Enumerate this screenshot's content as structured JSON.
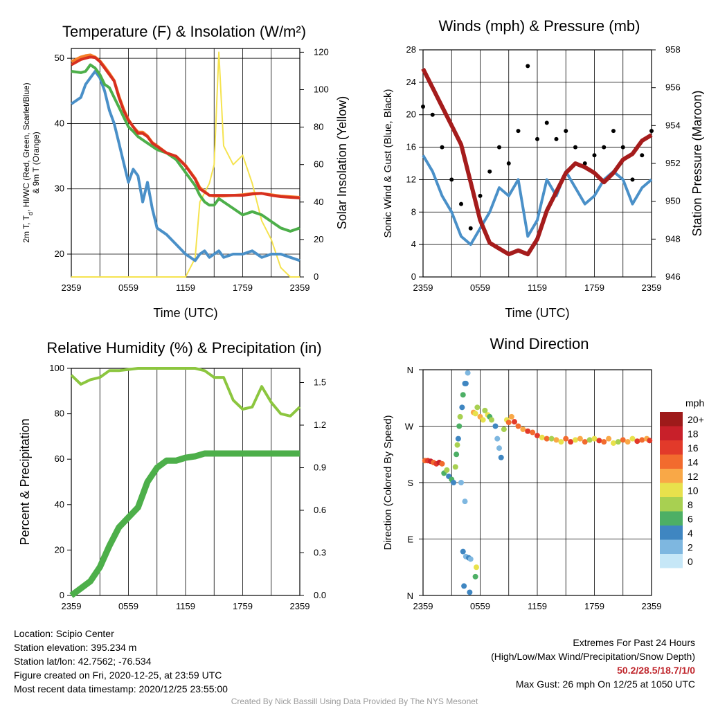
{
  "colors": {
    "red": "#d7301f",
    "green": "#4daf4a",
    "blue": "#4a90c8",
    "orange": "#f57f29",
    "yellow": "#f5e34f",
    "maroon": "#a51c1c",
    "lightgreen": "#8cc63f",
    "precip": "#4daf4a"
  },
  "panels": {
    "temp": {
      "title": "Temperature (F) & Insolation (W/m²)",
      "ylabel_left": [
        "2m T, T",
        "d",
        ", HI/WC (Red, Green, Scarlet/Blue)",
        "& 9m T (Orange)"
      ],
      "ylabel_right": "Solar Insolation (Yellow)",
      "xlabel": "Time (UTC)"
    },
    "wind": {
      "title": "Winds (mph) & Pressure (mb)",
      "ylabel_left": "Sonic Wind & Gust (Blue, Black)",
      "ylabel_right": "Station Pressure (Maroon)",
      "xlabel": "Time (UTC)"
    },
    "rh": {
      "title": "Relative Humidity (%) & Precipitation (in)",
      "ylabel_left": "Percent & Precipitation"
    },
    "dir": {
      "title": "Wind Direction",
      "ylabel_left": "Direction (Colored By Speed)",
      "legend_title": "mph",
      "legend_labels": [
        "20+",
        "18",
        "16",
        "14",
        "12",
        "10",
        "8",
        "6",
        "4",
        "2",
        "0"
      ],
      "legend_colors": [
        "#9e1a1a",
        "#c8202a",
        "#e23a2a",
        "#f26b2e",
        "#f9a847",
        "#e8e14c",
        "#a8d051",
        "#4daf65",
        "#3f86c1",
        "#7eb7e0",
        "#c6e7f7"
      ]
    }
  },
  "info": {
    "location": "Location: Scipio Center",
    "elevation": "Station elevation: 395.234 m",
    "latlon": "Station lat/lon: 42.7562; -76.534",
    "created": "Figure created on Fri, 2020-12-25, at 23:59 UTC",
    "recent": "Most recent data timestamp: 2020/12/25 23:55:00",
    "extremes_title": "Extremes For Past 24 Hours",
    "extremes_sub": "(High/Low/Max Wind/Precipitation/Snow Depth)",
    "extremes_values": "50.2/28.5/18.7/1/0",
    "max_gust": "Max Gust: 26 mph On 12/25 at 1050 UTC",
    "credit": "Created By Nick Bassill Using Data Provided By The NYS Mesonet"
  },
  "chart_data": [
    {
      "type": "line",
      "title": "Temperature (F) & Insolation (W/m²)",
      "xlabel": "Time (UTC)",
      "x_ticks": [
        "2359",
        "0559",
        "1159",
        "1759",
        "2359"
      ],
      "y_left_ticks": [
        20,
        30,
        40,
        50
      ],
      "ylim_left": [
        16.5,
        51.5
      ],
      "y_right_ticks": [
        0,
        20,
        40,
        60,
        80,
        100,
        120
      ],
      "ylim_right": [
        0,
        122
      ],
      "x": [
        0,
        1,
        1.5,
        2,
        2.5,
        3,
        3.5,
        4,
        4.5,
        5,
        5.5,
        6,
        6.5,
        7,
        7.5,
        8,
        8.5,
        9,
        10,
        11,
        12,
        13,
        13.5,
        14,
        14.5,
        15,
        15.5,
        16,
        17,
        18,
        19,
        20,
        21,
        22,
        23,
        24
      ],
      "series": [
        {
          "name": "2m T",
          "color": "red",
          "axis": "left",
          "values": [
            49,
            49.8,
            50,
            50.2,
            50.1,
            49.5,
            48.5,
            47.5,
            46.5,
            44,
            42,
            40.5,
            39.5,
            38.5,
            38.5,
            38,
            37,
            36.5,
            35.5,
            35,
            33.5,
            31.5,
            30,
            29.5,
            29,
            29,
            29,
            29,
            29,
            29,
            29.2,
            29.3,
            29,
            28.8,
            28.7,
            28.6
          ]
        },
        {
          "name": "9m T",
          "color": "orange",
          "axis": "left",
          "values": [
            49.5,
            50.2,
            50.4,
            50.5,
            50.2,
            49.6,
            48.7,
            47.7,
            46.6,
            44.2,
            42.2,
            40.6,
            39.5,
            38.7,
            38.7,
            38.1,
            37.1,
            36.6,
            35.5,
            35,
            33.6,
            31.6,
            30.2,
            29.6,
            29,
            28.9,
            28.9,
            28.9,
            29,
            29.1,
            29.3,
            29.3,
            29.1,
            28.9,
            28.8,
            28.7
          ]
        },
        {
          "name": "HI/WC",
          "color": "green",
          "axis": "left",
          "values": [
            48,
            47.8,
            48,
            49,
            48.5,
            47.5,
            46,
            45.5,
            44,
            42.5,
            41,
            39.5,
            38.8,
            38,
            37.5,
            37,
            36.5,
            36,
            35.5,
            34.5,
            32.5,
            30.5,
            29,
            28,
            27.5,
            27.5,
            28.5,
            28,
            27,
            26,
            26.5,
            26,
            25,
            24,
            23.5,
            24
          ]
        },
        {
          "name": "Td",
          "color": "blue",
          "axis": "left",
          "values": [
            43,
            44,
            46,
            47,
            48,
            47,
            45,
            42,
            40,
            37,
            34,
            31,
            33,
            32,
            28,
            31,
            27,
            24,
            23,
            21.5,
            20,
            19,
            20,
            20.5,
            19.5,
            20,
            20.5,
            19.5,
            20,
            20,
            20.5,
            19.5,
            20,
            20,
            19.5,
            19
          ]
        },
        {
          "name": "Solar",
          "color": "yellow",
          "axis": "right",
          "values": [
            0,
            0,
            0,
            0,
            0,
            0,
            0,
            0,
            0,
            0,
            0,
            0,
            0,
            0,
            0,
            0,
            0,
            0,
            0,
            0,
            0,
            10,
            40,
            45,
            50,
            60,
            120,
            70,
            60,
            65,
            50,
            30,
            20,
            5,
            0,
            0
          ]
        }
      ]
    },
    {
      "type": "line",
      "title": "Winds (mph) & Pressure (mb)",
      "xlabel": "Time (UTC)",
      "x_ticks": [
        "2359",
        "0559",
        "1159",
        "1759",
        "2359"
      ],
      "y_left_ticks": [
        0,
        4,
        8,
        12,
        16,
        20,
        24,
        28
      ],
      "ylim_left": [
        0,
        28
      ],
      "y_right_ticks": [
        946,
        948,
        950,
        952,
        954,
        956,
        958
      ],
      "ylim_right": [
        946,
        958
      ],
      "x": [
        0,
        1,
        2,
        3,
        4,
        5,
        6,
        7,
        8,
        9,
        10,
        11,
        12,
        13,
        14,
        15,
        16,
        17,
        18,
        19,
        20,
        21,
        22,
        23,
        24
      ],
      "series": [
        {
          "name": "Sonic Wind",
          "color": "blue",
          "axis": "left",
          "values": [
            15,
            13,
            10,
            8,
            5,
            4,
            6,
            8,
            11,
            10,
            12,
            5,
            7,
            12,
            10,
            13,
            11,
            9,
            10,
            12,
            13,
            12,
            9,
            11,
            12
          ]
        },
        {
          "name": "Gust",
          "color": "black",
          "axis": "left",
          "values": [
            21,
            20,
            16,
            12,
            9,
            6,
            10,
            13,
            16,
            14,
            18,
            26,
            17,
            19,
            17,
            18,
            16,
            14,
            15,
            16,
            18,
            16,
            12,
            15,
            18
          ]
        },
        {
          "name": "Station Pressure",
          "color": "maroon",
          "axis": "right",
          "values": [
            957,
            956,
            955,
            954,
            953,
            951,
            949,
            947.8,
            947.5,
            947.2,
            947.4,
            947.2,
            948,
            949.5,
            950.5,
            951.5,
            952,
            951.8,
            951.5,
            951,
            951.5,
            952.2,
            952.5,
            953.2,
            953.5
          ]
        }
      ]
    },
    {
      "type": "line",
      "title": "Relative Humidity (%) & Precipitation (in)",
      "x_ticks": [
        "2359",
        "0559",
        "1159",
        "1759",
        "2359"
      ],
      "y_left_ticks": [
        0,
        20,
        40,
        60,
        80,
        100
      ],
      "ylim_left": [
        0,
        100
      ],
      "y_right_ticks": [
        0.0,
        0.3,
        0.6,
        0.9,
        1.2,
        1.5
      ],
      "ylim_right": [
        0,
        1.6
      ],
      "x": [
        0,
        1,
        2,
        3,
        4,
        5,
        6,
        7,
        8,
        9,
        10,
        11,
        12,
        13,
        14,
        15,
        16,
        17,
        18,
        19,
        20,
        21,
        22,
        23,
        24
      ],
      "series": [
        {
          "name": "Relative Humidity",
          "color": "lightgreen",
          "axis": "left",
          "values": [
            97,
            93,
            95,
            96,
            99,
            99,
            99.5,
            100,
            100,
            100,
            100,
            100,
            100,
            100,
            99,
            96,
            96,
            86,
            82,
            83,
            92,
            85,
            80,
            79,
            83
          ]
        },
        {
          "name": "Precipitation",
          "color": "precip",
          "axis": "right",
          "values": [
            0,
            0.05,
            0.1,
            0.2,
            0.35,
            0.48,
            0.55,
            0.62,
            0.8,
            0.9,
            0.95,
            0.95,
            0.97,
            0.98,
            1.0,
            1.0,
            1.0,
            1.0,
            1.0,
            1.0,
            1.0,
            1.0,
            1.0,
            1.0,
            1.0
          ]
        }
      ]
    },
    {
      "type": "scatter",
      "title": "Wind Direction",
      "x_ticks": [
        "2359",
        "0559",
        "1159",
        "1759",
        "2359"
      ],
      "y_ticks": [
        "N",
        "E",
        "S",
        "W",
        "N"
      ],
      "ylim": [
        0,
        360
      ],
      "points": [
        [
          0.2,
          215,
          14
        ],
        [
          0.5,
          215,
          16
        ],
        [
          0.8,
          214,
          18
        ],
        [
          1.1,
          212,
          14
        ],
        [
          1.4,
          210,
          16
        ],
        [
          1.7,
          212,
          18
        ],
        [
          2.0,
          210,
          14
        ],
        [
          2.2,
          195,
          6
        ],
        [
          2.5,
          200,
          8
        ],
        [
          2.7,
          190,
          4
        ],
        [
          3.0,
          185,
          6
        ],
        [
          3.2,
          180,
          4
        ],
        [
          3.4,
          205,
          8
        ],
        [
          3.5,
          225,
          6
        ],
        [
          3.6,
          240,
          8
        ],
        [
          3.7,
          250,
          4
        ],
        [
          3.8,
          270,
          6
        ],
        [
          3.9,
          285,
          8
        ],
        [
          4.1,
          300,
          4
        ],
        [
          4.2,
          320,
          6
        ],
        [
          4.4,
          338,
          4
        ],
        [
          4.7,
          355,
          2
        ],
        [
          4.5,
          338,
          4
        ],
        [
          4.0,
          180,
          2
        ],
        [
          4.4,
          150,
          2
        ],
        [
          4.2,
          70,
          4
        ],
        [
          4.5,
          62,
          2
        ],
        [
          4.8,
          60,
          4
        ],
        [
          5.0,
          58,
          2
        ],
        [
          4.3,
          15,
          4
        ],
        [
          4.9,
          5,
          4
        ],
        [
          5.5,
          30,
          6
        ],
        [
          5.6,
          45,
          10
        ],
        [
          5.3,
          292,
          12
        ],
        [
          5.5,
          290,
          10
        ],
        [
          5.7,
          300,
          8
        ],
        [
          6.0,
          285,
          12
        ],
        [
          6.3,
          280,
          10
        ],
        [
          6.5,
          295,
          8
        ],
        [
          6.8,
          288,
          10
        ],
        [
          7.0,
          285,
          6
        ],
        [
          7.2,
          280,
          8
        ],
        [
          7.6,
          270,
          4
        ],
        [
          7.8,
          250,
          2
        ],
        [
          8.0,
          235,
          2
        ],
        [
          8.2,
          220,
          4
        ],
        [
          8.5,
          265,
          8
        ],
        [
          8.8,
          280,
          10
        ],
        [
          9.0,
          276,
          14
        ],
        [
          9.3,
          285,
          12
        ],
        [
          9.6,
          277,
          16
        ],
        [
          10.0,
          270,
          14
        ],
        [
          10.5,
          265,
          12
        ],
        [
          11.0,
          262,
          16
        ],
        [
          11.5,
          260,
          14
        ],
        [
          12.0,
          255,
          16
        ],
        [
          12.5,
          252,
          10
        ],
        [
          13.0,
          250,
          14
        ],
        [
          13.5,
          250,
          8
        ],
        [
          14.0,
          248,
          12
        ],
        [
          14.5,
          245,
          10
        ],
        [
          15.0,
          250,
          14
        ],
        [
          15.5,
          245,
          16
        ],
        [
          16.0,
          248,
          10
        ],
        [
          16.5,
          250,
          12
        ],
        [
          17.0,
          245,
          14
        ],
        [
          17.5,
          248,
          8
        ],
        [
          18.0,
          250,
          10
        ],
        [
          18.5,
          247,
          16
        ],
        [
          19.0,
          245,
          14
        ],
        [
          19.5,
          250,
          12
        ],
        [
          20.0,
          243,
          10
        ],
        [
          20.5,
          245,
          8
        ],
        [
          21.0,
          248,
          14
        ],
        [
          21.5,
          245,
          12
        ],
        [
          22.0,
          250,
          10
        ],
        [
          22.5,
          246,
          16
        ],
        [
          23.0,
          248,
          14
        ],
        [
          23.5,
          250,
          12
        ],
        [
          23.8,
          247,
          16
        ]
      ]
    }
  ]
}
